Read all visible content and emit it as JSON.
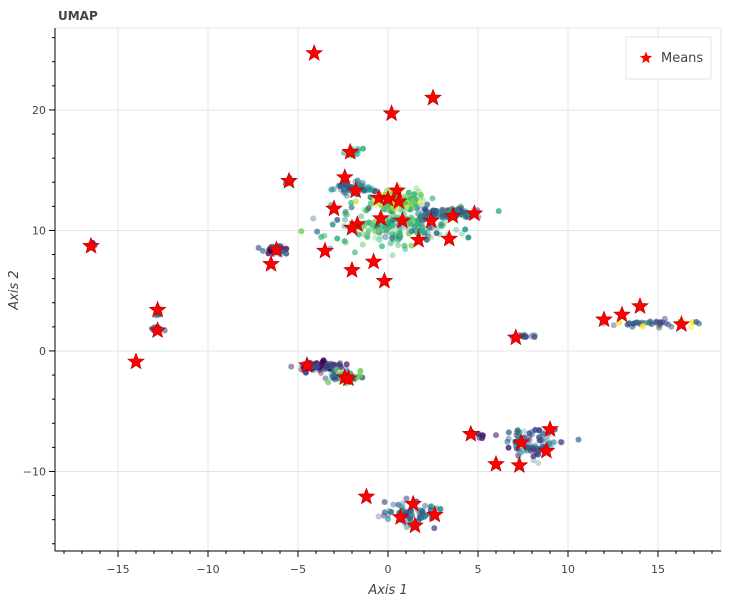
{
  "chart_data": {
    "type": "scatter",
    "title": "UMAP",
    "xlabel": "Axis 1",
    "ylabel": "Axis 2",
    "xlim": [
      -18.5,
      18.5
    ],
    "ylim": [
      -16.6,
      26.8
    ],
    "xticks": [
      -15,
      -10,
      -5,
      0,
      5,
      10,
      15
    ],
    "yticks": [
      -10,
      0,
      10,
      20
    ],
    "grid": true,
    "legend_position": "top-right",
    "series": [
      {
        "name": "Means",
        "marker": "star",
        "color": "#ff0000",
        "points": [
          [
            -4.1,
            24.7
          ],
          [
            0.2,
            19.7
          ],
          [
            2.5,
            21.0
          ],
          [
            -2.1,
            16.5
          ],
          [
            -2.4,
            14.4
          ],
          [
            -5.5,
            14.1
          ],
          [
            -1.8,
            13.3
          ],
          [
            0.5,
            13.3
          ],
          [
            -3.0,
            11.8
          ],
          [
            -0.5,
            12.7
          ],
          [
            0.0,
            12.6
          ],
          [
            0.6,
            12.4
          ],
          [
            4.8,
            11.4
          ],
          [
            3.6,
            11.2
          ],
          [
            -0.4,
            11.0
          ],
          [
            2.4,
            10.8
          ],
          [
            0.8,
            10.8
          ],
          [
            -1.7,
            10.5
          ],
          [
            -2.0,
            10.2
          ],
          [
            1.7,
            9.2
          ],
          [
            3.4,
            9.3
          ],
          [
            -16.5,
            8.7
          ],
          [
            -6.2,
            8.4
          ],
          [
            -3.5,
            8.3
          ],
          [
            -0.8,
            7.4
          ],
          [
            -6.5,
            7.2
          ],
          [
            -2.0,
            6.7
          ],
          [
            -0.2,
            5.8
          ],
          [
            14.0,
            3.7
          ],
          [
            13.0,
            3.0
          ],
          [
            12.0,
            2.6
          ],
          [
            16.3,
            2.2
          ],
          [
            7.1,
            1.1
          ],
          [
            -12.8,
            3.4
          ],
          [
            -12.8,
            1.7
          ],
          [
            -14.0,
            -0.9
          ],
          [
            -4.5,
            -1.2
          ],
          [
            -2.4,
            -2.2
          ],
          [
            -2.2,
            -2.3
          ],
          [
            4.6,
            -6.9
          ],
          [
            9.0,
            -6.5
          ],
          [
            7.4,
            -7.6
          ],
          [
            8.8,
            -8.3
          ],
          [
            6.0,
            -9.4
          ],
          [
            7.3,
            -9.5
          ],
          [
            -1.2,
            -12.1
          ],
          [
            1.4,
            -12.7
          ],
          [
            0.7,
            -13.8
          ],
          [
            2.6,
            -13.6
          ],
          [
            1.5,
            -14.5
          ]
        ]
      }
    ],
    "clusters": [
      {
        "cx": 0.5,
        "cy": 10.5,
        "rx": 3.5,
        "ry": 1.8,
        "n": 220,
        "colors": [
          "#35b779",
          "#35b779",
          "#21918c",
          "#6ece58",
          "#31688e"
        ]
      },
      {
        "cx": 0.5,
        "cy": 12.6,
        "rx": 1.5,
        "ry": 0.8,
        "n": 90,
        "colors": [
          "#b5de2b",
          "#6ece58",
          "#35b779",
          "#fde725"
        ]
      },
      {
        "cx": 3.5,
        "cy": 11.4,
        "rx": 1.6,
        "ry": 0.45,
        "n": 90,
        "colors": [
          "#31688e",
          "#3e4989",
          "#21918c",
          "#35b779",
          "#443983"
        ]
      },
      {
        "cx": -1.8,
        "cy": 13.5,
        "rx": 1.0,
        "ry": 0.5,
        "n": 60,
        "colors": [
          "#31688e",
          "#3e4989",
          "#21918c"
        ]
      },
      {
        "cx": -2.0,
        "cy": 16.5,
        "rx": 0.5,
        "ry": 0.3,
        "n": 14,
        "colors": [
          "#35b779",
          "#21918c"
        ]
      },
      {
        "cx": -6.2,
        "cy": 8.4,
        "rx": 0.6,
        "ry": 0.4,
        "n": 40,
        "colors": [
          "#440154",
          "#3e4989",
          "#482878",
          "#31688e"
        ]
      },
      {
        "cx": -5.5,
        "cy": 14.1,
        "rx": 0.3,
        "ry": 0.3,
        "n": 10,
        "colors": [
          "#31688e",
          "#21918c"
        ]
      },
      {
        "cx": -12.8,
        "cy": 1.8,
        "rx": 0.3,
        "ry": 0.3,
        "n": 14,
        "colors": [
          "#31688e",
          "#3e4989"
        ]
      },
      {
        "cx": -12.8,
        "cy": 3.2,
        "rx": 0.3,
        "ry": 0.3,
        "n": 10,
        "colors": [
          "#31688e",
          "#21918c"
        ]
      },
      {
        "cx": -16.5,
        "cy": 8.8,
        "rx": 0.2,
        "ry": 0.3,
        "n": 5,
        "colors": [
          "#440154"
        ]
      },
      {
        "cx": -3.8,
        "cy": -1.3,
        "rx": 1.4,
        "ry": 0.4,
        "n": 80,
        "colors": [
          "#31688e",
          "#3e4989",
          "#440154",
          "#482878"
        ]
      },
      {
        "cx": -2.3,
        "cy": -2.2,
        "rx": 0.9,
        "ry": 0.4,
        "n": 70,
        "colors": [
          "#31688e",
          "#21918c",
          "#3e4989",
          "#6ece58"
        ]
      },
      {
        "cx": 14.9,
        "cy": 2.3,
        "rx": 2.3,
        "ry": 0.3,
        "n": 40,
        "colors": [
          "#31688e",
          "#3e4989",
          "#fde725"
        ]
      },
      {
        "cx": 7.6,
        "cy": 1.2,
        "rx": 0.7,
        "ry": 0.15,
        "n": 18,
        "colors": [
          "#31688e",
          "#3e4989"
        ]
      },
      {
        "cx": 8.2,
        "cy": -7.7,
        "rx": 1.4,
        "ry": 1.2,
        "n": 90,
        "colors": [
          "#3e4989",
          "#31688e",
          "#482878",
          "#21918c"
        ]
      },
      {
        "cx": 5.2,
        "cy": -7.0,
        "rx": 0.6,
        "ry": 0.4,
        "n": 8,
        "colors": [
          "#440154",
          "#482878"
        ]
      },
      {
        "cx": 1.0,
        "cy": -13.6,
        "rx": 1.7,
        "ry": 1.0,
        "n": 60,
        "colors": [
          "#31688e",
          "#3e4989",
          "#21918c"
        ]
      }
    ]
  }
}
